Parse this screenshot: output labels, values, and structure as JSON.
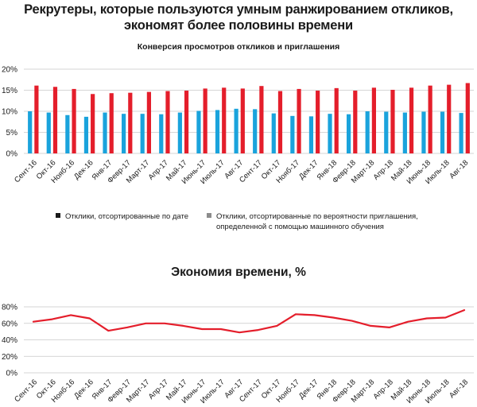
{
  "title_line1": "Рекрутеры, которые пользуются умным ранжированием откликов,",
  "title_line2": "экономят более половины времени",
  "colors": {
    "red": "#e41e2b",
    "blue": "#1aa3dc",
    "grid": "#c8c8c8",
    "line": "#e41e2b",
    "legend_black": "#1a1a1a",
    "legend_gray": "#8c8c8c"
  },
  "legend": {
    "item1": "Отклики, отсортированные по дате",
    "item2_line1": "Отклики, отсортированные по вероятности приглашения,",
    "item2_line2": "определенной с помощью машинного обучения"
  },
  "chart_data": [
    {
      "type": "bar",
      "title": "Конверсия просмотров откликов и приглашения",
      "categories": [
        "Сент-16",
        "Окт-16",
        "Нояб-16",
        "Дек-16",
        "Янв-17",
        "Февр-17",
        "Март-17",
        "Апр-17",
        "Май-17",
        "Июнь-17",
        "Июль-17",
        "Авг-17",
        "Сент-17",
        "Окт-17",
        "Нояб-17",
        "Дек-17",
        "Янв-18",
        "Февр-18",
        "Март-18",
        "Апр-18",
        "Май-18",
        "Июнь-18",
        "Июль-18",
        "Авг-18"
      ],
      "series": [
        {
          "name": "Отклики, отсортированные по дате",
          "color": "#1aa3dc",
          "values": [
            10.0,
            9.7,
            9.1,
            8.7,
            9.7,
            9.4,
            9.4,
            9.3,
            9.7,
            10.1,
            10.3,
            10.6,
            10.5,
            9.5,
            8.9,
            8.8,
            9.4,
            9.3,
            10.0,
            9.9,
            9.7,
            9.9,
            9.9,
            9.6
          ]
        },
        {
          "name": "Отклики, отсортированные по вероятности приглашения, определенной с помощью машинного обучения",
          "color": "#e41e2b",
          "values": [
            16.1,
            15.8,
            15.3,
            14.1,
            14.3,
            14.4,
            14.6,
            14.8,
            14.9,
            15.4,
            15.6,
            15.4,
            16.0,
            14.8,
            15.3,
            14.9,
            15.5,
            14.9,
            15.6,
            15.1,
            15.6,
            16.1,
            16.3,
            16.7
          ]
        }
      ],
      "yticks": [
        "0%",
        "5%",
        "10%",
        "15%",
        "20%"
      ],
      "ylim": [
        0,
        20
      ],
      "grid": true
    },
    {
      "type": "line",
      "title": "Экономия времени, %",
      "categories": [
        "Сент-16",
        "Окт-16",
        "Нояб-16",
        "Дек-16",
        "Янв-17",
        "Февр-17",
        "Март-17",
        "Апр-17",
        "Май-17",
        "Июнь-17",
        "Июль-17",
        "Авг-17",
        "Сент-17",
        "Окт-17",
        "Нояб-17",
        "Дек-17",
        "Янв-18",
        "Февр-18",
        "Март-18",
        "Апр-18",
        "Май-18",
        "Июнь-18",
        "Июль-18",
        "Авг-18"
      ],
      "values": [
        62,
        65,
        70,
        66,
        51,
        55,
        60,
        60,
        57,
        53,
        53,
        49,
        52,
        57,
        71,
        70,
        67,
        63,
        57,
        55,
        62,
        66,
        67,
        76
      ],
      "yticks": [
        "0%",
        "20%",
        "40%",
        "60%",
        "80%"
      ],
      "ylim": [
        0,
        80
      ],
      "grid": true
    }
  ]
}
